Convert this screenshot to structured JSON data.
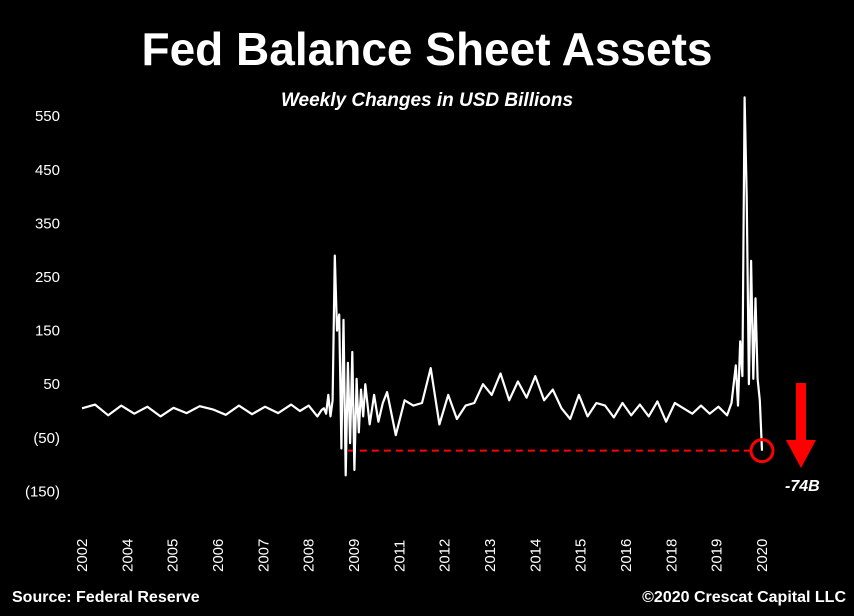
{
  "title": "Fed Balance Sheet Assets",
  "subtitle": "Weekly Changes in USD Billions",
  "footer": {
    "source": "Source: Federal Reserve",
    "copyright": "©2020 Crescat Capital LLC"
  },
  "colors": {
    "background": "#000000",
    "line": "#ffffff",
    "annotation": "#ff0000"
  },
  "chart_data": {
    "type": "line",
    "title": "Fed Balance Sheet Assets",
    "subtitle": "Weekly Changes in USD Billions",
    "xlabel": "",
    "ylabel": "",
    "ylim": [
      -150,
      600
    ],
    "xlim": [
      2002,
      2021
    ],
    "grid": false,
    "y_ticks": [
      {
        "value": 550,
        "label": "550"
      },
      {
        "value": 450,
        "label": "450"
      },
      {
        "value": 350,
        "label": "350"
      },
      {
        "value": 250,
        "label": "250"
      },
      {
        "value": 150,
        "label": "150"
      },
      {
        "value": 50,
        "label": "50"
      },
      {
        "value": -50,
        "label": "(50)"
      },
      {
        "value": -150,
        "label": "(150)"
      }
    ],
    "x_ticks": [
      {
        "value": 2002,
        "label": "2002"
      },
      {
        "value": 2003,
        "label": "2004"
      },
      {
        "value": 2004,
        "label": "2005"
      },
      {
        "value": 2005,
        "label": "2006"
      },
      {
        "value": 2006,
        "label": "2007"
      },
      {
        "value": 2007,
        "label": "2008"
      },
      {
        "value": 2008,
        "label": "2009"
      },
      {
        "value": 2009,
        "label": "2011"
      },
      {
        "value": 2010,
        "label": "2012"
      },
      {
        "value": 2011,
        "label": "2013"
      },
      {
        "value": 2012,
        "label": "2014"
      },
      {
        "value": 2013,
        "label": "2015"
      },
      {
        "value": 2014,
        "label": "2016"
      },
      {
        "value": 2015,
        "label": "2018"
      },
      {
        "value": 2016,
        "label": "2019"
      },
      {
        "value": 2017,
        "label": "2020"
      }
    ],
    "series": [
      {
        "x": [
          2002.0,
          2002.3,
          2002.6,
          2002.9,
          2003.2,
          2003.5,
          2003.8,
          2004.1,
          2004.4,
          2004.7,
          2005.0,
          2005.3,
          2005.6,
          2005.9,
          2006.2,
          2006.5,
          2006.8,
          2007.0,
          2007.2,
          2007.4,
          2007.5,
          2007.55,
          2007.6,
          2007.65,
          2007.7,
          2007.75,
          2007.8,
          2007.85,
          2007.9,
          2007.95,
          2008.0,
          2008.05,
          2008.1,
          2008.15,
          2008.2,
          2008.25,
          2008.3,
          2008.35,
          2008.4,
          2008.45,
          2008.5,
          2008.6,
          2008.7,
          2008.8,
          2008.9,
          2009.0,
          2009.2,
          2009.4,
          2009.6,
          2009.8,
          2010.0,
          2010.2,
          2010.4,
          2010.6,
          2010.8,
          2011.0,
          2011.2,
          2011.4,
          2011.6,
          2011.8,
          2012.0,
          2012.2,
          2012.4,
          2012.6,
          2012.8,
          2013.0,
          2013.2,
          2013.4,
          2013.6,
          2013.8,
          2014.0,
          2014.2,
          2014.4,
          2014.6,
          2014.8,
          2015.0,
          2015.2,
          2015.4,
          2015.6,
          2015.8,
          2016.0,
          2016.2,
          2016.4,
          2016.6,
          2016.8,
          2016.9,
          2017.0,
          2017.05,
          2017.1,
          2017.15,
          2017.2,
          2017.25,
          2017.3,
          2017.35,
          2017.4,
          2017.45,
          2017.5,
          2017.55,
          2017.6
        ],
        "y": [
          5,
          12,
          -8,
          10,
          -5,
          8,
          -10,
          6,
          -4,
          9,
          3,
          -7,
          10,
          -6,
          8,
          -4,
          12,
          0,
          10,
          -10,
          2,
          5,
          -5,
          30,
          -10,
          20,
          290,
          150,
          180,
          -70,
          170,
          -120,
          90,
          -60,
          110,
          -110,
          60,
          -40,
          40,
          -10,
          50,
          -25,
          30,
          -20,
          15,
          35,
          -45,
          20,
          10,
          15,
          80,
          -25,
          30,
          -15,
          10,
          15,
          50,
          30,
          70,
          20,
          55,
          25,
          65,
          20,
          40,
          5,
          -15,
          30,
          -10,
          15,
          10,
          -12,
          15,
          -8,
          12,
          -10,
          18,
          -20,
          15,
          5,
          -5,
          10,
          -5,
          8,
          -8,
          15,
          85,
          10,
          130,
          65,
          585,
          400,
          50,
          280,
          60,
          210,
          60,
          20,
          -74
        ]
      }
    ],
    "annotations": {
      "callout_value": -74,
      "callout_label": "-74B",
      "reference_line_y": -74
    }
  }
}
